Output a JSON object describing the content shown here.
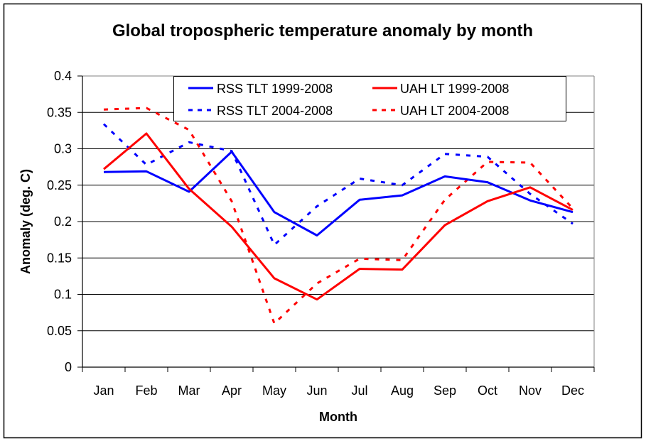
{
  "chart_data": {
    "type": "line",
    "title": "Global tropospheric temperature anomaly by month",
    "xlabel": "Month",
    "ylabel": "Anomaly (deg. C)",
    "categories": [
      "Jan",
      "Feb",
      "Mar",
      "Apr",
      "May",
      "Jun",
      "Jul",
      "Aug",
      "Sep",
      "Oct",
      "Nov",
      "Dec"
    ],
    "ylim": [
      0,
      0.4
    ],
    "yticks": [
      "0",
      "0.05",
      "0.1",
      "0.15",
      "0.2",
      "0.25",
      "0.3",
      "0.35",
      "0.4"
    ],
    "ytick_values": [
      0,
      0.05,
      0.1,
      0.15,
      0.2,
      0.25,
      0.3,
      0.35,
      0.4
    ],
    "grid": "horizontal major gridlines",
    "legend_position": "top-center inside plot",
    "series": [
      {
        "name": "RSS TLT 1999-2008",
        "color": "#0000ff",
        "style": "solid",
        "values": [
          0.268,
          0.269,
          0.241,
          0.296,
          0.213,
          0.181,
          0.23,
          0.236,
          0.262,
          0.254,
          0.229,
          0.213
        ]
      },
      {
        "name": "UAH LT 1999-2008",
        "color": "#ff0000",
        "style": "solid",
        "values": [
          0.272,
          0.321,
          0.245,
          0.193,
          0.122,
          0.093,
          0.135,
          0.134,
          0.195,
          0.228,
          0.247,
          0.216
        ]
      },
      {
        "name": "RSS TLT 2004-2008",
        "color": "#0000ff",
        "style": "dashed",
        "values": [
          0.334,
          0.278,
          0.309,
          0.297,
          0.168,
          0.221,
          0.259,
          0.25,
          0.293,
          0.289,
          0.238,
          0.197
        ]
      },
      {
        "name": "UAH LT 2004-2008",
        "color": "#ff0000",
        "style": "dashed",
        "values": [
          0.354,
          0.356,
          0.326,
          0.228,
          0.06,
          0.115,
          0.149,
          0.147,
          0.23,
          0.282,
          0.281,
          0.218
        ]
      }
    ],
    "legend_order": [
      0,
      1,
      2,
      3
    ]
  }
}
